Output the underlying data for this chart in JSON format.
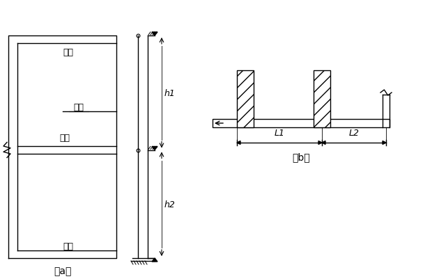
{
  "fig_width": 6.3,
  "fig_height": 4.02,
  "dpi": 100,
  "bg_color": "#ffffff",
  "line_color": "#000000",
  "label_a": "（a）",
  "label_b": "（b）",
  "text_dingban": "顶板",
  "text_cebi": "侧壁",
  "text_loban": "楼板",
  "text_diban": "底板",
  "text_h1": "h1",
  "text_h2": "h2",
  "text_L1": "L1",
  "text_L2": "L2",
  "hatch_pattern": "//",
  "font_size": 9,
  "label_font_size": 10
}
